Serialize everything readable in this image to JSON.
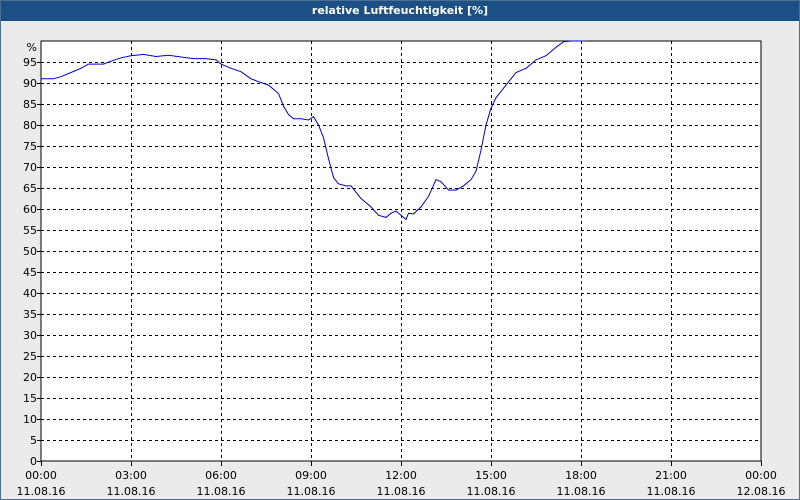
{
  "window": {
    "title": "relative Luftfeuchtigkeit [%]"
  },
  "chart_data": {
    "type": "line",
    "title": "relative Luftfeuchtigkeit [%]",
    "ylabel": "%",
    "xlabel": "",
    "ylim": [
      0,
      100
    ],
    "y_ticks": [
      0,
      5,
      10,
      15,
      20,
      25,
      30,
      35,
      40,
      45,
      50,
      55,
      60,
      65,
      70,
      75,
      80,
      85,
      90,
      95
    ],
    "xlim": [
      "11.08.16 00:00",
      "12.08.16 00:00"
    ],
    "x_ticks": [
      {
        "time": "00:00",
        "date": "11.08.16"
      },
      {
        "time": "03:00",
        "date": "11.08.16"
      },
      {
        "time": "06:00",
        "date": "11.08.16"
      },
      {
        "time": "09:00",
        "date": "11.08.16"
      },
      {
        "time": "12:00",
        "date": "11.08.16"
      },
      {
        "time": "15:00",
        "date": "11.08.16"
      },
      {
        "time": "18:00",
        "date": "11.08.16"
      },
      {
        "time": "21:00",
        "date": "11.08.16"
      },
      {
        "time": "00:00",
        "date": "12.08.16"
      }
    ],
    "grid": true,
    "line_color": "#0000cc",
    "series": [
      {
        "x": [
          "11.08.16 00:00",
          "11.08.16 00:25",
          "11.08.16 00:40",
          "11.08.16 01:00",
          "11.08.16 01:20",
          "11.08.16 01:35",
          "11.08.16 01:50",
          "11.08.16 02:05",
          "11.08.16 02:20",
          "11.08.16 02:40",
          "11.08.16 03:00",
          "11.08.16 03:25",
          "11.08.16 03:50",
          "11.08.16 04:15",
          "11.08.16 04:40",
          "11.08.16 05:05",
          "11.08.16 05:30",
          "11.08.16 05:50",
          "11.08.16 06:00",
          "11.08.16 06:20",
          "11.08.16 06:40",
          "11.08.16 07:00",
          "11.08.16 07:15",
          "11.08.16 07:35",
          "11.08.16 07:55",
          "11.08.16 08:05",
          "11.08.16 08:15",
          "11.08.16 08:25",
          "11.08.16 08:40",
          "11.08.16 08:55",
          "11.08.16 09:05",
          "11.08.16 09:15",
          "11.08.16 09:25",
          "11.08.16 09:35",
          "11.08.16 09:45",
          "11.08.16 09:55",
          "11.08.16 10:10",
          "11.08.16 10:20",
          "11.08.16 10:40",
          "11.08.16 11:00",
          "11.08.16 11:15",
          "11.08.16 11:30",
          "11.08.16 11:40",
          "11.08.16 11:50",
          "11.08.16 12:00",
          "11.08.16 12:10",
          "11.08.16 12:15",
          "11.08.16 12:25",
          "11.08.16 12:40",
          "11.08.16 12:55",
          "11.08.16 13:10",
          "11.08.16 13:20",
          "11.08.16 13:35",
          "11.08.16 13:50",
          "11.08.16 14:05",
          "11.08.16 14:20",
          "11.08.16 14:30",
          "11.08.16 14:40",
          "11.08.16 14:50",
          "11.08.16 15:00",
          "11.08.16 15:10",
          "11.08.16 15:20",
          "11.08.16 15:30",
          "11.08.16 15:40",
          "11.08.16 15:50",
          "11.08.16 16:00",
          "11.08.16 16:10",
          "11.08.16 16:20",
          "11.08.16 16:30",
          "11.08.16 16:40",
          "11.08.16 16:50",
          "11.08.16 17:00",
          "11.08.16 17:10",
          "11.08.16 17:25",
          "11.08.16 17:40",
          "11.08.16 17:50",
          "11.08.16 18:00",
          "11.08.16 18:10"
        ],
        "values": [
          91,
          91,
          91.5,
          92.5,
          93.5,
          94.5,
          94.5,
          94.5,
          95.2,
          96,
          96.5,
          96.8,
          96.3,
          96.6,
          96.2,
          95.8,
          95.8,
          95.5,
          94.5,
          93.5,
          92.7,
          91,
          90.3,
          89.5,
          87.5,
          84.5,
          82.5,
          81.5,
          81.5,
          81.2,
          82,
          80,
          77,
          72,
          67.5,
          66,
          65.5,
          65.5,
          62.5,
          60.5,
          58.5,
          58,
          59,
          59.5,
          58.5,
          57.5,
          59,
          58.8,
          60.5,
          63,
          67,
          66.5,
          64.5,
          64.5,
          65.5,
          67,
          69,
          74,
          80,
          84,
          86.5,
          88,
          89.5,
          91,
          92.5,
          93,
          93.5,
          94.5,
          95.5,
          96,
          96.5,
          97.5,
          98.5,
          99.8,
          100,
          100,
          100,
          100
        ]
      }
    ]
  }
}
